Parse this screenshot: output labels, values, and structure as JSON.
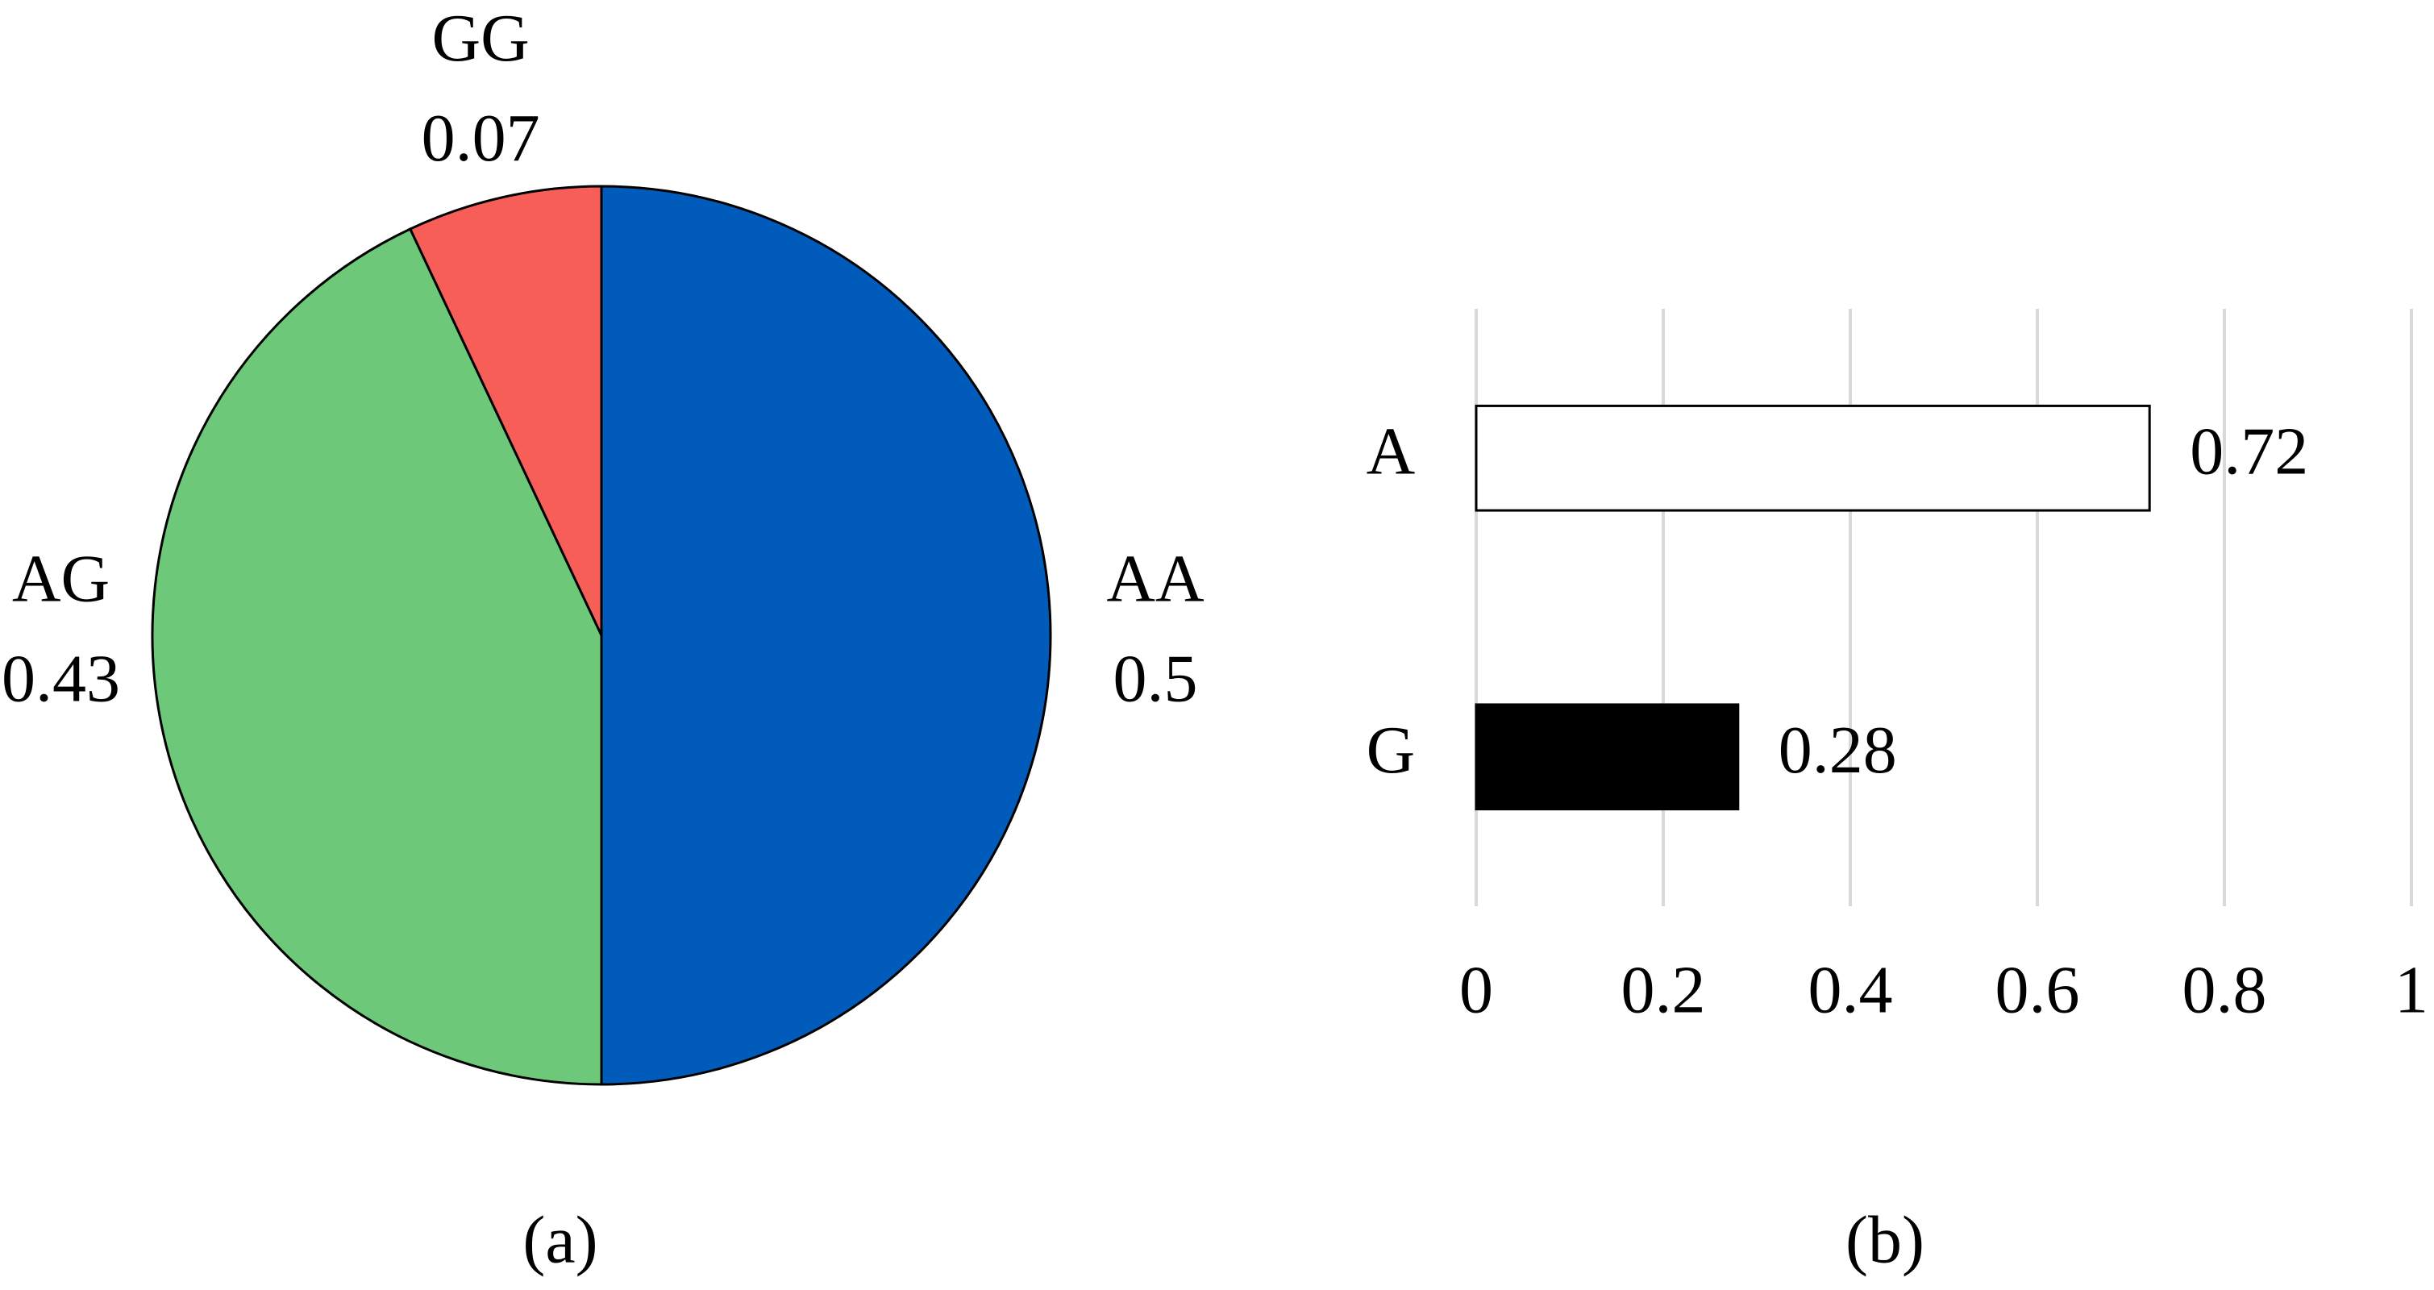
{
  "chart_data": [
    {
      "type": "pie",
      "caption": "(a)",
      "categories": [
        "AA",
        "AG",
        "GG"
      ],
      "values": [
        0.5,
        0.43,
        0.07
      ],
      "colors": [
        "#005bbb",
        "#6dc879",
        "#f75e58"
      ]
    },
    {
      "type": "hbar",
      "caption": "(b)",
      "categories": [
        "A",
        "G"
      ],
      "values": [
        0.72,
        0.28
      ],
      "colors": [
        "#ffffff",
        "#000000"
      ],
      "xlim": [
        0,
        1
      ],
      "xticks": [
        0,
        0.2,
        0.4,
        0.6,
        0.8,
        1
      ],
      "grid": true
    }
  ]
}
